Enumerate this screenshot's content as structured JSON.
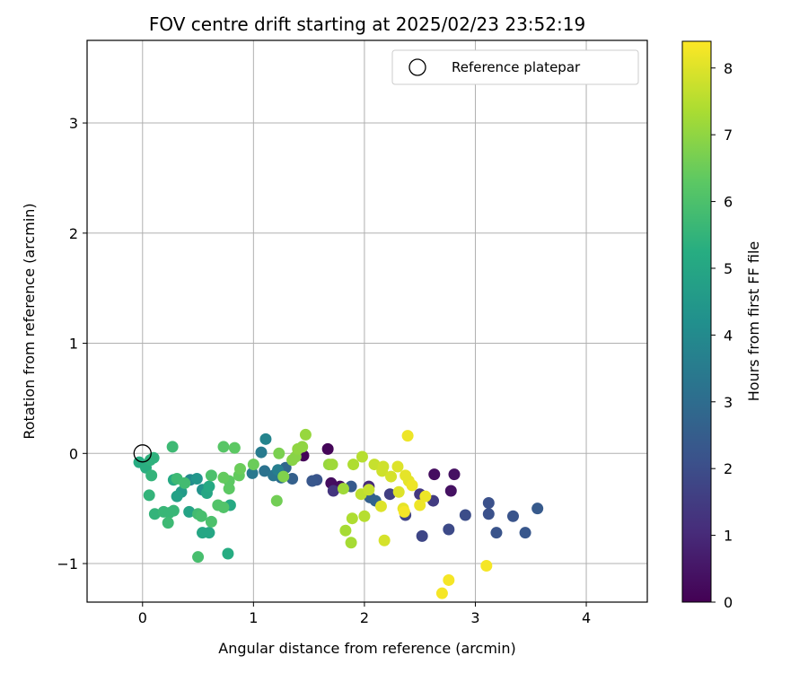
{
  "chart_data": {
    "type": "scatter",
    "title": "FOV centre drift starting at 2025/02/23 23:52:19",
    "xlabel": "Angular distance from reference (arcmin)",
    "ylabel": "Rotation from reference (arcmin)",
    "xlim": [
      -0.5,
      4.55
    ],
    "ylim": [
      -1.35,
      3.75
    ],
    "xticks": [
      0,
      1,
      2,
      3,
      4
    ],
    "yticks": [
      -1,
      0,
      1,
      2,
      3
    ],
    "xtick_labels": [
      "0",
      "1",
      "2",
      "3",
      "4"
    ],
    "ytick_labels": [
      "−1",
      "0",
      "1",
      "2",
      "3"
    ],
    "grid": true,
    "legend": {
      "position": "top-right",
      "entries": [
        "Reference platepar"
      ]
    },
    "reference_point": {
      "x": 0,
      "y": 0,
      "label": "Reference platepar"
    },
    "colorbar": {
      "label": "Hours from first FF file",
      "range": [
        0,
        8.4
      ],
      "ticks": [
        0,
        1,
        2,
        3,
        4,
        5,
        6,
        7,
        8
      ],
      "tick_labels": [
        "0",
        "1",
        "2",
        "3",
        "4",
        "5",
        "6",
        "7",
        "8"
      ],
      "colormap": "viridis"
    },
    "points": [
      {
        "x": 1.45,
        "y": -0.02,
        "h": 0.1
      },
      {
        "x": 1.67,
        "y": 0.04,
        "h": 0.1
      },
      {
        "x": 1.7,
        "y": -0.27,
        "h": 0.3
      },
      {
        "x": 1.78,
        "y": -0.3,
        "h": 0.3
      },
      {
        "x": 2.63,
        "y": -0.19,
        "h": 0.3
      },
      {
        "x": 2.78,
        "y": -0.34,
        "h": 0.4
      },
      {
        "x": 2.81,
        "y": -0.19,
        "h": 0.4
      },
      {
        "x": 2.04,
        "y": -0.3,
        "h": 1.0
      },
      {
        "x": 1.72,
        "y": -0.34,
        "h": 1.3
      },
      {
        "x": 2.5,
        "y": -0.37,
        "h": 1.4
      },
      {
        "x": 2.62,
        "y": -0.43,
        "h": 1.5
      },
      {
        "x": 2.23,
        "y": -0.37,
        "h": 1.6
      },
      {
        "x": 2.37,
        "y": -0.56,
        "h": 1.7
      },
      {
        "x": 2.52,
        "y": -0.75,
        "h": 1.8
      },
      {
        "x": 2.76,
        "y": -0.69,
        "h": 1.9
      },
      {
        "x": 2.91,
        "y": -0.56,
        "h": 2.0
      },
      {
        "x": 3.12,
        "y": -0.45,
        "h": 2.1
      },
      {
        "x": 3.12,
        "y": -0.55,
        "h": 2.1
      },
      {
        "x": 3.19,
        "y": -0.72,
        "h": 2.2
      },
      {
        "x": 3.34,
        "y": -0.57,
        "h": 2.2
      },
      {
        "x": 3.45,
        "y": -0.72,
        "h": 2.3
      },
      {
        "x": 3.56,
        "y": -0.5,
        "h": 2.4
      },
      {
        "x": 1.57,
        "y": -0.24,
        "h": 2.2
      },
      {
        "x": 1.53,
        "y": -0.25,
        "h": 2.3
      },
      {
        "x": 1.88,
        "y": -0.3,
        "h": 2.4
      },
      {
        "x": 2.05,
        "y": -0.4,
        "h": 2.6
      },
      {
        "x": 2.1,
        "y": -0.43,
        "h": 2.7
      },
      {
        "x": 1.35,
        "y": -0.23,
        "h": 2.6
      },
      {
        "x": 1.29,
        "y": -0.13,
        "h": 2.8
      },
      {
        "x": 1.25,
        "y": -0.22,
        "h": 3.0
      },
      {
        "x": 1.1,
        "y": -0.16,
        "h": 3.2
      },
      {
        "x": 1.18,
        "y": -0.2,
        "h": 3.3
      },
      {
        "x": 0.99,
        "y": -0.18,
        "h": 3.4
      },
      {
        "x": 1.07,
        "y": 0.01,
        "h": 3.5
      },
      {
        "x": 1.11,
        "y": 0.13,
        "h": 3.8
      },
      {
        "x": 1.22,
        "y": -0.15,
        "h": 3.6
      },
      {
        "x": 0.43,
        "y": -0.24,
        "h": 4.0
      },
      {
        "x": 0.54,
        "y": -0.33,
        "h": 4.3
      },
      {
        "x": 0.49,
        "y": -0.23,
        "h": 4.4
      },
      {
        "x": 0.35,
        "y": -0.35,
        "h": 4.6
      },
      {
        "x": 0.31,
        "y": -0.39,
        "h": 4.8
      },
      {
        "x": 0.42,
        "y": -0.53,
        "h": 4.9
      },
      {
        "x": 0.54,
        "y": -0.72,
        "h": 5.0
      },
      {
        "x": 0.6,
        "y": -0.72,
        "h": 5.0
      },
      {
        "x": 0.58,
        "y": -0.36,
        "h": 5.0
      },
      {
        "x": 0.28,
        "y": -0.24,
        "h": 5.1
      },
      {
        "x": 0.6,
        "y": -0.3,
        "h": 5.1
      },
      {
        "x": 0.79,
        "y": -0.47,
        "h": 5.1
      },
      {
        "x": 0.77,
        "y": -0.91,
        "h": 5.2
      },
      {
        "x": -0.03,
        "y": -0.08,
        "h": 5.2
      },
      {
        "x": 0.03,
        "y": -0.13,
        "h": 5.3
      },
      {
        "x": 0.07,
        "y": -0.06,
        "h": 5.4
      },
      {
        "x": 0.1,
        "y": -0.04,
        "h": 5.4
      },
      {
        "x": 0.08,
        "y": -0.2,
        "h": 5.5
      },
      {
        "x": 0.06,
        "y": -0.38,
        "h": 5.5
      },
      {
        "x": 0.11,
        "y": -0.55,
        "h": 5.5
      },
      {
        "x": 0.19,
        "y": -0.53,
        "h": 5.6
      },
      {
        "x": 0.24,
        "y": -0.54,
        "h": 5.6
      },
      {
        "x": 0.28,
        "y": -0.52,
        "h": 5.6
      },
      {
        "x": 0.23,
        "y": -0.63,
        "h": 5.7
      },
      {
        "x": 0.27,
        "y": 0.06,
        "h": 5.7
      },
      {
        "x": 0.31,
        "y": -0.23,
        "h": 5.7
      },
      {
        "x": 0.38,
        "y": -0.27,
        "h": 5.8
      },
      {
        "x": 0.5,
        "y": -0.55,
        "h": 5.8
      },
      {
        "x": 0.53,
        "y": -0.57,
        "h": 5.9
      },
      {
        "x": 0.62,
        "y": -0.62,
        "h": 6.0
      },
      {
        "x": 0.5,
        "y": -0.94,
        "h": 5.9
      },
      {
        "x": 0.62,
        "y": -0.2,
        "h": 6.0
      },
      {
        "x": 0.68,
        "y": -0.47,
        "h": 6.1
      },
      {
        "x": 0.73,
        "y": -0.49,
        "h": 6.1
      },
      {
        "x": 0.73,
        "y": 0.06,
        "h": 6.2
      },
      {
        "x": 0.83,
        "y": 0.05,
        "h": 6.3
      },
      {
        "x": 0.78,
        "y": -0.25,
        "h": 6.3
      },
      {
        "x": 0.78,
        "y": -0.32,
        "h": 6.3
      },
      {
        "x": 0.73,
        "y": -0.22,
        "h": 6.4
      },
      {
        "x": 0.87,
        "y": -0.2,
        "h": 6.4
      },
      {
        "x": 0.88,
        "y": -0.14,
        "h": 6.5
      },
      {
        "x": 1.0,
        "y": -0.1,
        "h": 6.5
      },
      {
        "x": 1.21,
        "y": -0.43,
        "h": 6.6
      },
      {
        "x": 1.23,
        "y": 0.0,
        "h": 6.7
      },
      {
        "x": 1.27,
        "y": -0.21,
        "h": 6.8
      },
      {
        "x": 1.35,
        "y": -0.06,
        "h": 6.9
      },
      {
        "x": 1.38,
        "y": -0.03,
        "h": 6.9
      },
      {
        "x": 1.4,
        "y": 0.04,
        "h": 7.0
      },
      {
        "x": 1.44,
        "y": 0.06,
        "h": 7.0
      },
      {
        "x": 1.47,
        "y": 0.17,
        "h": 7.1
      },
      {
        "x": 1.68,
        "y": -0.1,
        "h": 7.1
      },
      {
        "x": 1.71,
        "y": -0.1,
        "h": 7.2
      },
      {
        "x": 1.81,
        "y": -0.32,
        "h": 7.2
      },
      {
        "x": 1.83,
        "y": -0.7,
        "h": 7.3
      },
      {
        "x": 1.88,
        "y": -0.81,
        "h": 7.3
      },
      {
        "x": 1.89,
        "y": -0.59,
        "h": 7.4
      },
      {
        "x": 1.9,
        "y": -0.1,
        "h": 7.4
      },
      {
        "x": 1.98,
        "y": -0.03,
        "h": 7.5
      },
      {
        "x": 2.0,
        "y": -0.57,
        "h": 7.5
      },
      {
        "x": 1.97,
        "y": -0.37,
        "h": 7.6
      },
      {
        "x": 2.04,
        "y": -0.33,
        "h": 7.7
      },
      {
        "x": 2.09,
        "y": -0.1,
        "h": 7.7
      },
      {
        "x": 2.16,
        "y": -0.16,
        "h": 7.8
      },
      {
        "x": 2.17,
        "y": -0.12,
        "h": 7.8
      },
      {
        "x": 2.24,
        "y": -0.21,
        "h": 7.9
      },
      {
        "x": 2.18,
        "y": -0.79,
        "h": 7.9
      },
      {
        "x": 2.15,
        "y": -0.48,
        "h": 8.0
      },
      {
        "x": 2.3,
        "y": -0.12,
        "h": 8.0
      },
      {
        "x": 2.31,
        "y": -0.35,
        "h": 8.0
      },
      {
        "x": 2.35,
        "y": -0.5,
        "h": 8.1
      },
      {
        "x": 2.37,
        "y": -0.2,
        "h": 8.1
      },
      {
        "x": 2.4,
        "y": -0.25,
        "h": 8.1
      },
      {
        "x": 2.43,
        "y": -0.29,
        "h": 8.2
      },
      {
        "x": 2.5,
        "y": -0.47,
        "h": 8.2
      },
      {
        "x": 2.55,
        "y": -0.39,
        "h": 8.2
      },
      {
        "x": 2.39,
        "y": 0.16,
        "h": 8.2
      },
      {
        "x": 2.76,
        "y": -1.15,
        "h": 8.3
      },
      {
        "x": 2.7,
        "y": -1.27,
        "h": 8.3
      },
      {
        "x": 3.1,
        "y": -1.02,
        "h": 8.3
      },
      {
        "x": 2.36,
        "y": -0.53,
        "h": 8.3
      }
    ]
  }
}
